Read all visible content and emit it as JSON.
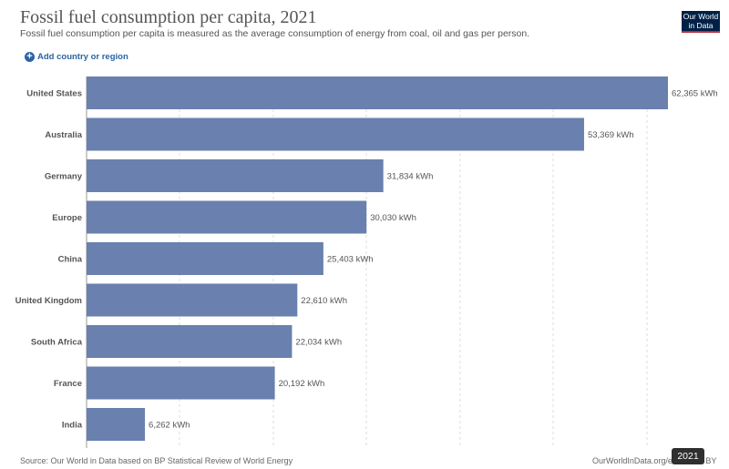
{
  "header": {
    "title": "Fossil fuel consumption per capita, 2021",
    "subtitle": "Fossil fuel consumption per capita is measured as the average consumption of energy from coal, oil and gas per person.",
    "logo_text": "Our World in Data",
    "add_button_label": "Add country or region"
  },
  "footer": {
    "source": "Source: Our World in Data based on BP Statistical Review of World Energy",
    "site": "OurWorldInData.org/e",
    "license_tail": "C BY",
    "year_badge": "2021"
  },
  "colors": {
    "bar": "#6a80ae",
    "grid": "#dddddd",
    "text": "#555555",
    "accent": "#2a64a4"
  },
  "chart_data": {
    "type": "bar",
    "orientation": "horizontal",
    "title": "Fossil fuel consumption per capita, 2021",
    "unit": "kWh",
    "categories": [
      "United States",
      "Australia",
      "Germany",
      "Europe",
      "China",
      "United Kingdom",
      "South Africa",
      "France",
      "India"
    ],
    "values": [
      62365,
      53369,
      31834,
      30030,
      25403,
      22610,
      22034,
      20192,
      6262
    ],
    "value_labels": [
      "62,365 kWh",
      "53,369 kWh",
      "31,834 kWh",
      "30,030 kWh",
      "25,403 kWh",
      "22,610 kWh",
      "22,034 kWh",
      "20,192 kWh",
      "6,262 kWh"
    ],
    "xlim": [
      0,
      62365
    ],
    "grid": true,
    "legend": "none"
  }
}
